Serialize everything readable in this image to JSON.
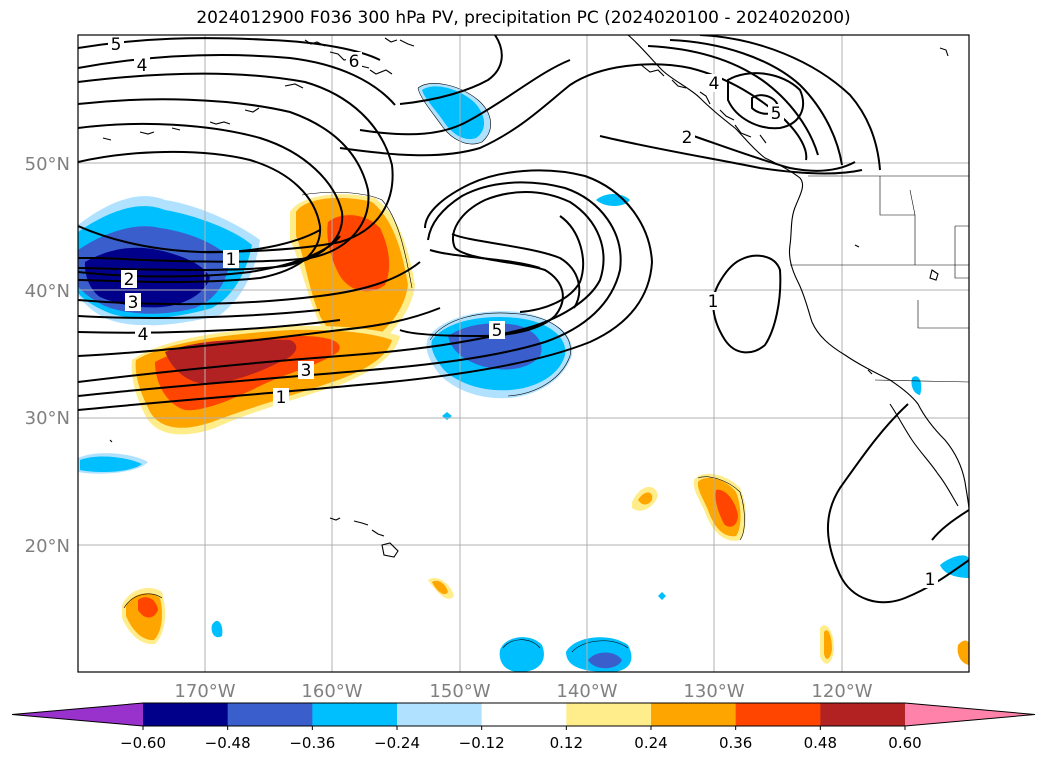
{
  "title": "2024012900 F036 300 hPa PV, precipitation PC (2024020100 - 2024020200)",
  "map": {
    "projection": "PlateCarree",
    "lon_range": [
      -180,
      -110
    ],
    "lat_range": [
      10,
      60
    ],
    "gridlines": true,
    "coastlines": true,
    "borders": true
  },
  "axes": {
    "lon_labels": [
      "170°W",
      "160°W",
      "150°W",
      "140°W",
      "130°W",
      "120°W"
    ],
    "lat_labels": [
      "50°N",
      "40°N",
      "30°N",
      "20°N"
    ],
    "label_color": "#808080"
  },
  "pv_contour_labels": [
    "5",
    "4",
    "6",
    "4",
    "2",
    "5",
    "1",
    "2",
    "3",
    "4",
    "5",
    "1",
    "3",
    "1",
    "1"
  ],
  "colorbar": {
    "ticks": [
      "−0.60",
      "−0.48",
      "−0.36",
      "−0.24",
      "−0.12",
      "0.12",
      "0.24",
      "0.36",
      "0.48",
      "0.60"
    ],
    "colors": [
      "#9932CC",
      "#00008B",
      "#3A5FCD",
      "#00BFFF",
      "#B0E2FF",
      "#FFFFFF",
      "#FFEC8B",
      "#FFA500",
      "#FF4500",
      "#B22222",
      "#FF82AB"
    ],
    "extend": "both"
  }
}
